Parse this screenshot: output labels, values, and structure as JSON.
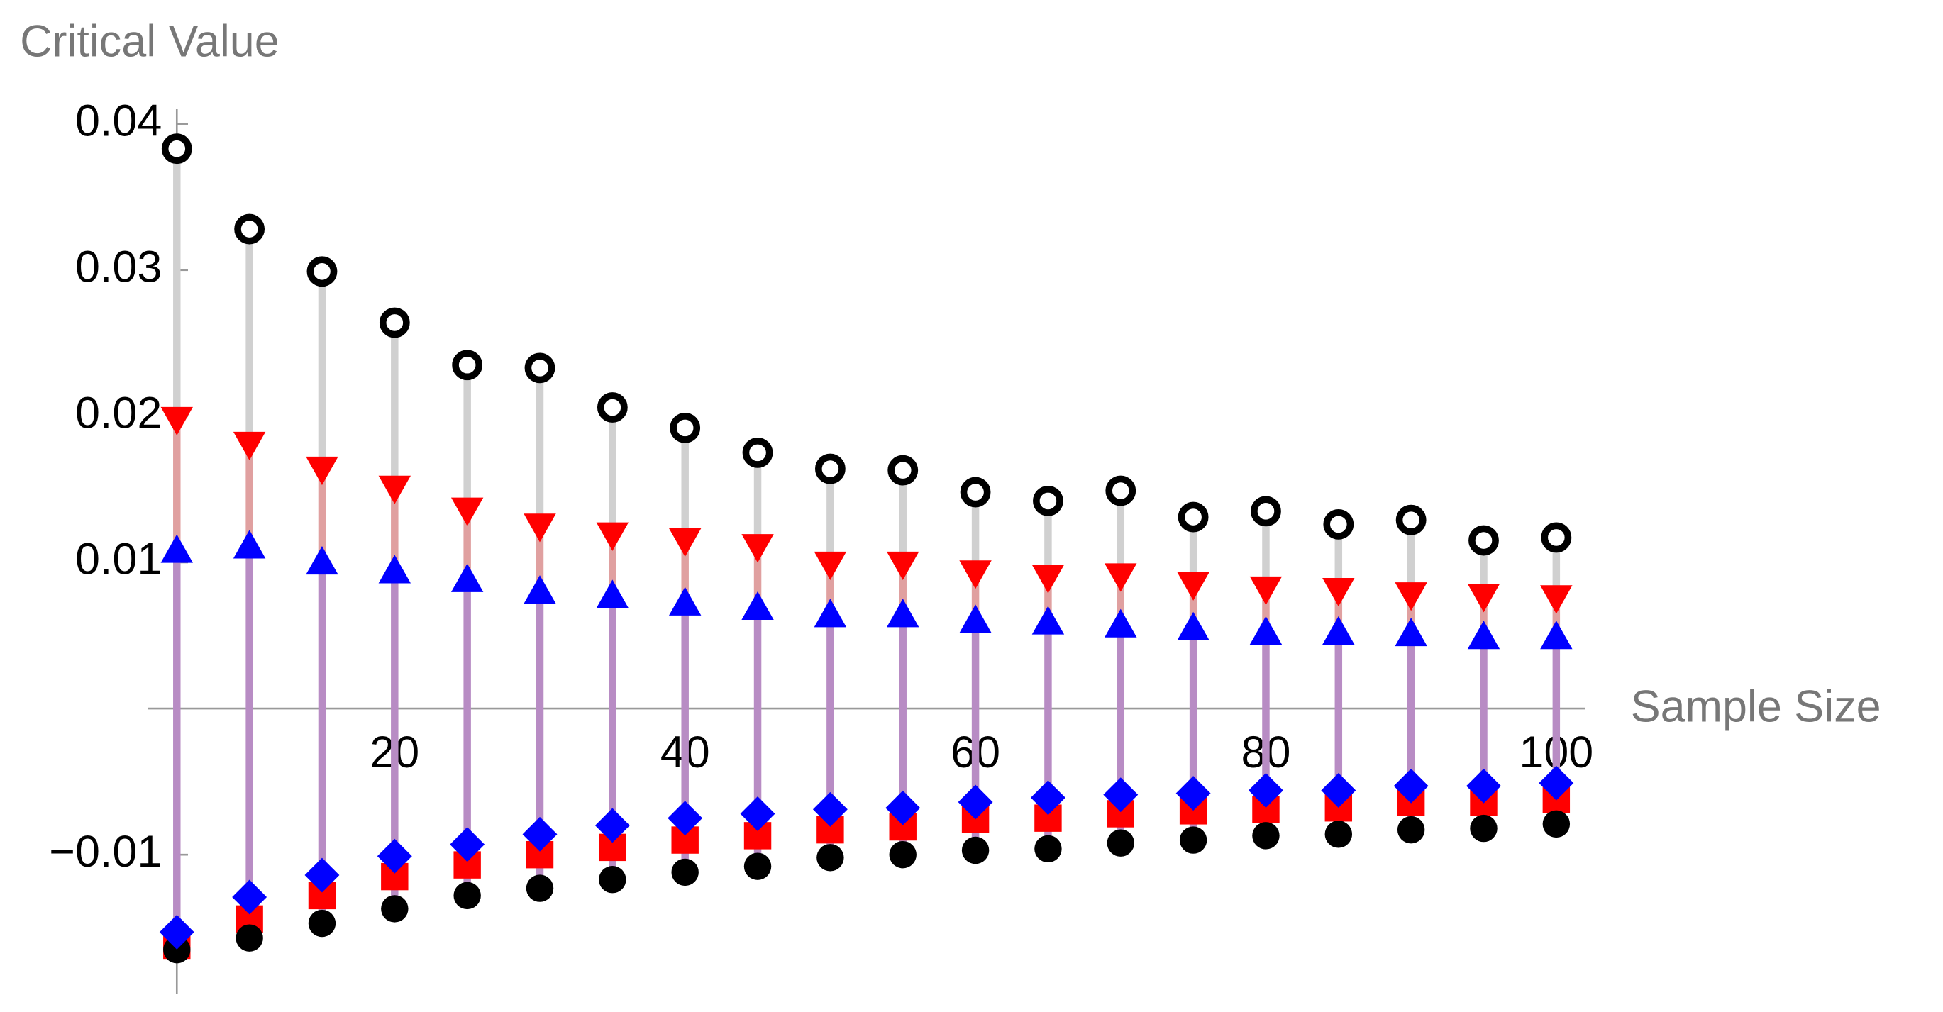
{
  "chart_data": {
    "type": "scatter",
    "x_label": "Sample Size",
    "y_label": "Critical Value",
    "x": [
      5,
      10,
      15,
      20,
      25,
      30,
      35,
      40,
      45,
      50,
      55,
      60,
      65,
      70,
      75,
      80,
      85,
      90,
      95,
      100
    ],
    "xlim": [
      3,
      102
    ],
    "xticks": [
      20,
      40,
      60,
      80,
      100
    ],
    "ylim": [
      -0.0195,
      0.041
    ],
    "yticks": [
      {
        "value": -0.01,
        "label": "−0.01"
      },
      0.01,
      0.02,
      0.03,
      0.04
    ],
    "series": [
      {
        "marker": "open-circle",
        "color": "#000000",
        "values": [
          0.0383,
          0.0328,
          0.0299,
          0.0264,
          0.0235,
          0.0233,
          0.0206,
          0.0192,
          0.0175,
          0.0164,
          0.0163,
          0.0148,
          0.0142,
          0.0149,
          0.0131,
          0.0135,
          0.0126,
          0.0129,
          0.0115,
          0.0117
        ]
      },
      {
        "marker": "down-triangle",
        "color": "#ff0000",
        "values": [
          0.0197,
          0.018,
          0.0163,
          0.015,
          0.0135,
          0.0124,
          0.0118,
          0.0114,
          0.011,
          0.0098,
          0.0098,
          0.0092,
          0.0089,
          0.009,
          0.0084,
          0.0081,
          0.008,
          0.0077,
          0.0076,
          0.0075
        ]
      },
      {
        "marker": "up-triangle",
        "color": "#0000ff",
        "values": [
          0.0109,
          0.0112,
          0.0101,
          0.0095,
          0.0089,
          0.0081,
          0.0078,
          0.0073,
          0.007,
          0.0065,
          0.0065,
          0.0061,
          0.006,
          0.0058,
          0.0056,
          0.0053,
          0.0053,
          0.0052,
          0.005,
          0.005
        ]
      },
      {
        "marker": "square",
        "color": "#ff0000",
        "values": [
          -0.0162,
          -0.0144,
          -0.0128,
          -0.0115,
          -0.0107,
          -0.01,
          -0.0095,
          -0.009,
          -0.0087,
          -0.0083,
          -0.0081,
          -0.0076,
          -0.0075,
          -0.0072,
          -0.007,
          -0.0069,
          -0.0068,
          -0.0064,
          -0.0064,
          -0.0062
        ]
      },
      {
        "marker": "filled-circle",
        "color": "#000000",
        "values": [
          -0.0165,
          -0.0157,
          -0.0147,
          -0.0137,
          -0.0128,
          -0.0123,
          -0.0117,
          -0.0112,
          -0.0108,
          -0.0102,
          -0.01,
          -0.0097,
          -0.0096,
          -0.0092,
          -0.009,
          -0.0087,
          -0.0086,
          -0.0083,
          -0.0082,
          -0.0079
        ]
      },
      {
        "marker": "diamond",
        "color": "#0000ff",
        "values": [
          -0.0153,
          -0.0129,
          -0.0114,
          -0.0101,
          -0.0093,
          -0.0086,
          -0.008,
          -0.0075,
          -0.0072,
          -0.0069,
          -0.0068,
          -0.0064,
          -0.0061,
          -0.0059,
          -0.0058,
          -0.0056,
          -0.0056,
          -0.0053,
          -0.0053,
          -0.0051
        ]
      }
    ]
  }
}
